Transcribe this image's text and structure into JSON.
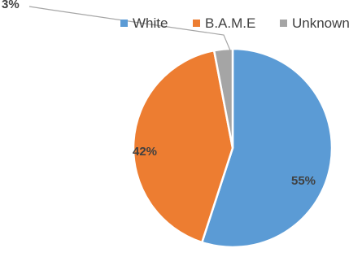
{
  "chart_data": {
    "type": "pie",
    "title": "",
    "legend_position": "top-right",
    "series": [
      {
        "name": "White",
        "value": 55,
        "label": "55%",
        "color": "#5B9BD5"
      },
      {
        "name": "B.A.M.E",
        "value": 42,
        "label": "42%",
        "color": "#ED7D31"
      },
      {
        "name": "Unknown",
        "value": 3,
        "label": "3%",
        "color": "#A5A5A5"
      }
    ]
  }
}
